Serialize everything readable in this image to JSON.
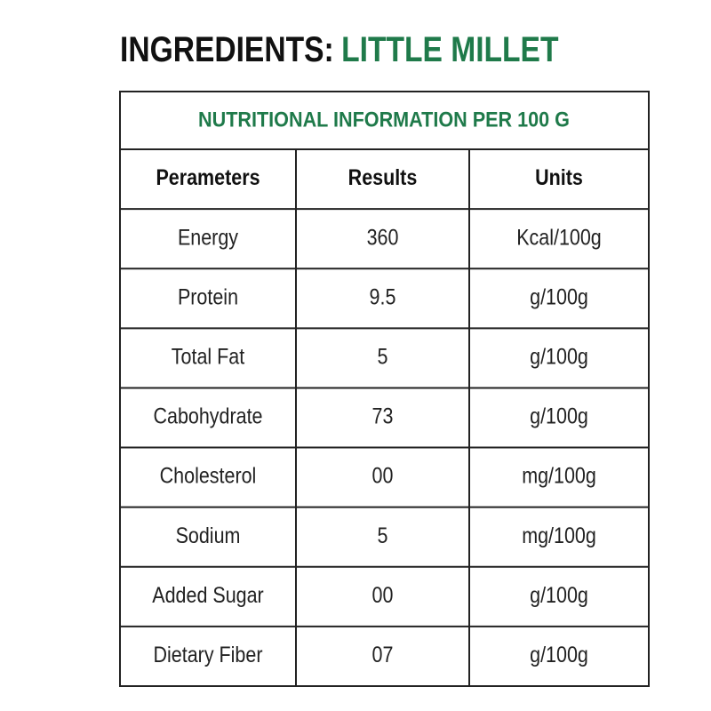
{
  "header": {
    "prefix": "INGREDIENTS:",
    "product": "LITTLE MILLET"
  },
  "table": {
    "caption": "NUTRITIONAL INFORMATION PER 100 G",
    "columns": [
      "Perameters",
      "Results",
      "Units"
    ],
    "rows": [
      [
        "Energy",
        "360",
        "Kcal/100g"
      ],
      [
        "Protein",
        "9.5",
        "g/100g"
      ],
      [
        "Total Fat",
        "5",
        "g/100g"
      ],
      [
        "Cabohydrate",
        "73",
        "g/100g"
      ],
      [
        "Cholesterol",
        "00",
        "mg/100g"
      ],
      [
        "Sodium",
        "5",
        "mg/100g"
      ],
      [
        "Added Sugar",
        "00",
        "g/100g"
      ],
      [
        "Dietary Fiber",
        "07",
        "g/100g"
      ]
    ]
  }
}
